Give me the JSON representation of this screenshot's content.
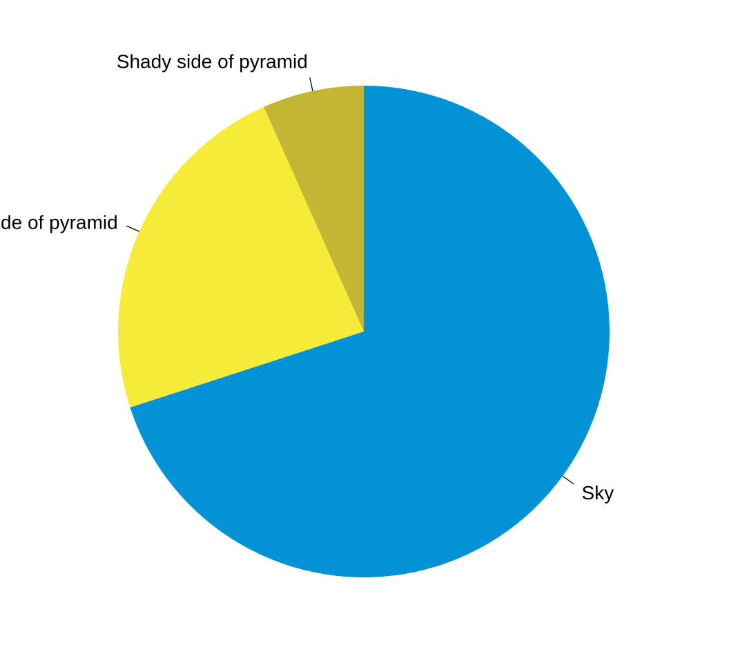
{
  "chart_data": {
    "type": "pie",
    "title": "",
    "direction": "clockwise",
    "start_angle_deg": 0,
    "slices": [
      {
        "label": "Sky",
        "value": 0.7,
        "color": "#0492D6"
      },
      {
        "label": "Sunny side of pyramid",
        "value": 0.2333,
        "color": "#F5EB38"
      },
      {
        "label": "Shady side of pyramid",
        "value": 0.0667,
        "color": "#C4B635"
      }
    ],
    "legend": "none"
  }
}
